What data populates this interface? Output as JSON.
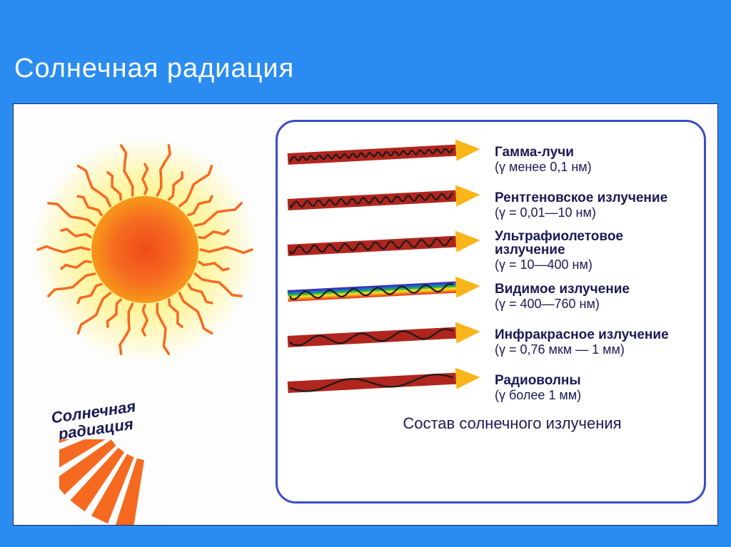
{
  "slide": {
    "background": "#2a8cf0",
    "title": "Солнечная  радиация",
    "title_color": "#ffffff"
  },
  "figure": {
    "border_color": "#1e2a6a",
    "background": "#fdfdfd"
  },
  "sun": {
    "label_line1": "Солнечная",
    "label_line2": "радиация",
    "label_color": "#1a1a56",
    "disc_colors": [
      "#f04a1a",
      "#f56a20",
      "#f9a519",
      "#f9c21f"
    ],
    "glow_color": "#fff27a",
    "ray_color": "#f56a20",
    "radiation_bar_color": "#f56a20",
    "radiation_bar_count": 8
  },
  "spectrum": {
    "box_border": "#3a4dc4",
    "caption": "Состав солнечного излучения",
    "caption_color": "#1a1a56",
    "label_color": "#1a1a56",
    "arrow_angle_deg": -3,
    "arrowhead_color": "#f9b519",
    "bands": [
      {
        "name": "Гамма-лучи",
        "range": "(γ менее 0,1 нм)",
        "shaft_fill": "#b0261e",
        "wave_stroke": "#1b1b1b",
        "wave_freq": 40,
        "wave_amp": 3
      },
      {
        "name": "Рентгеновское излучение",
        "range": "(γ = 0,01—10 нм)",
        "shaft_fill": "#b0261e",
        "wave_stroke": "#1b1b1b",
        "wave_freq": 30,
        "wave_amp": 4
      },
      {
        "name": "Ультрафиолетовое излучение",
        "range": "(γ = 10—400 нм)",
        "shaft_fill": "#b0261e",
        "wave_stroke": "#1b1b1b",
        "wave_freq": 22,
        "wave_amp": 5
      },
      {
        "name": "Видимое излучение",
        "range": "(γ = 400—760 нм)",
        "shaft_fill": "rainbow",
        "wave_stroke": "#1b1b1b",
        "wave_freq": 14,
        "wave_amp": 5
      },
      {
        "name": "Инфракрасное излучение",
        "range": "(γ = 0,76 мкм — 1 мм)",
        "shaft_fill": "#b0261e",
        "wave_stroke": "#1b1b1b",
        "wave_freq": 8,
        "wave_amp": 6
      },
      {
        "name": "Радиоволны",
        "range": "(γ более 1 мм)",
        "shaft_fill": "#b0261e",
        "wave_stroke": "#1b1b1b",
        "wave_freq": 4,
        "wave_amp": 7
      }
    ],
    "rainbow_colors": [
      "#3a1ea0",
      "#1e5fd8",
      "#1fae4c",
      "#f4e31b",
      "#f58a1b",
      "#e0261b"
    ]
  }
}
